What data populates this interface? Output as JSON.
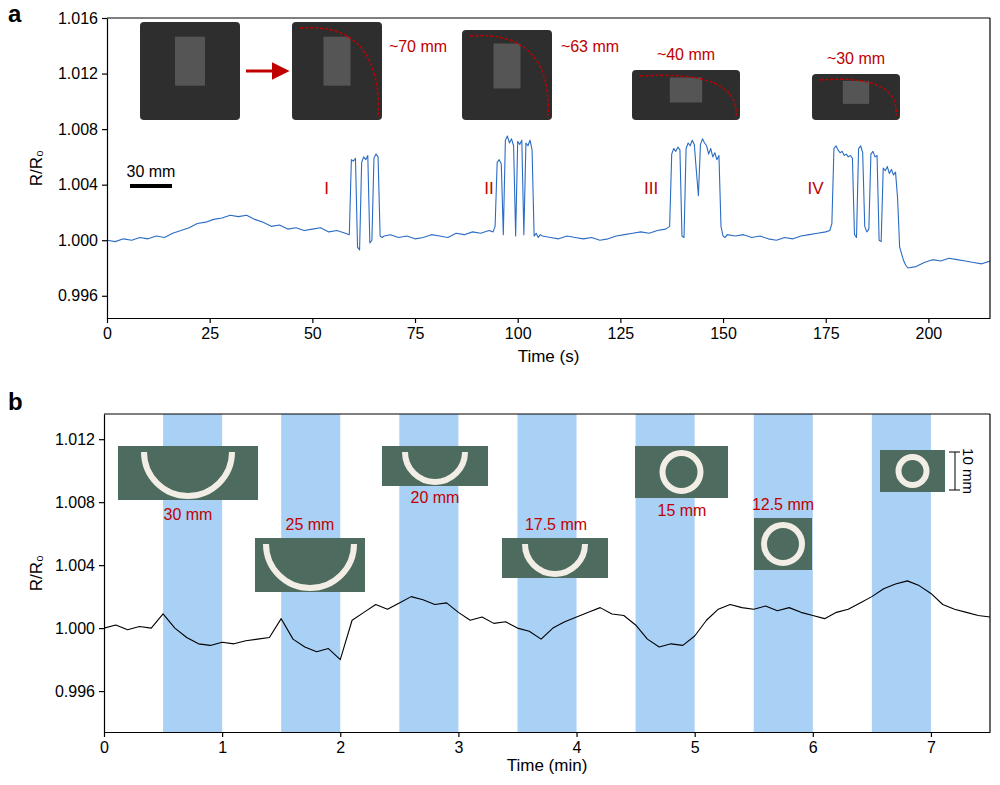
{
  "chart_data": [
    {
      "type": "line",
      "panel": "a",
      "x_label": "Time (s)",
      "y_label": "R/R₀",
      "color": "#2b6cc4",
      "grid": false,
      "xlim": [
        0,
        215
      ],
      "xticks": [
        0,
        25,
        50,
        75,
        100,
        125,
        150,
        175,
        200
      ],
      "ylim": [
        0.9944,
        1.016
      ],
      "yticks": [
        0.996,
        {
          "value": 1,
          "label": "1.000"
        },
        1.004,
        1.008,
        1.012,
        1.016
      ],
      "annotations": [
        {
          "text": "I",
          "x": 53.5,
          "y": 1.0033
        },
        {
          "text": "II",
          "x": 93,
          "y": 1.0033
        },
        {
          "text": "III",
          "x": 132.5,
          "y": 1.0033
        },
        {
          "text": "IV",
          "x": 172.5,
          "y": 1.0033
        }
      ],
      "inset_labels": [
        "~70 mm",
        "~63 mm",
        "~40 mm",
        "~30 mm"
      ],
      "scale_bar": "30 mm",
      "x": [
        0,
        2,
        4,
        6,
        8,
        10,
        12,
        14,
        16,
        18,
        20,
        22,
        24,
        26,
        28,
        30,
        32,
        34,
        36,
        38,
        40,
        42,
        44,
        46,
        48,
        50,
        52,
        54,
        56,
        58,
        59,
        59.5,
        60,
        60.5,
        61,
        61.5,
        62,
        62.5,
        63,
        63.5,
        64,
        64.5,
        65,
        65.5,
        66,
        66.5,
        67,
        67.5,
        69,
        71,
        73,
        75,
        77,
        79,
        81,
        83,
        85,
        87,
        89,
        91,
        93,
        94,
        94.5,
        95,
        95.5,
        96,
        96.5,
        97,
        97.5,
        98,
        98.5,
        99,
        99.5,
        100,
        100.5,
        101,
        101.5,
        102,
        102.5,
        103,
        103.5,
        104,
        104.5,
        105,
        105.5,
        106,
        108,
        110,
        112,
        114,
        116,
        118,
        120,
        122,
        124,
        126,
        128,
        130,
        132,
        134,
        136,
        137,
        137.5,
        138,
        138.5,
        139,
        139.5,
        140,
        140.5,
        141,
        141.5,
        142,
        142.5,
        143,
        143.5,
        144,
        144.5,
        145,
        145.5,
        146,
        146.5,
        147,
        147.5,
        148,
        148.5,
        149,
        149.5,
        150,
        150.5,
        151,
        153,
        155,
        157,
        159,
        161,
        163,
        165,
        167,
        169,
        171,
        173,
        175,
        176,
        176.5,
        177,
        177.5,
        178,
        178.5,
        179,
        179.5,
        180,
        180.5,
        181,
        181.5,
        182,
        182.5,
        183,
        183.5,
        184,
        184.5,
        185,
        185.5,
        186,
        186.5,
        187,
        187.5,
        188,
        188.5,
        189,
        189.5,
        190,
        190.5,
        191,
        191.5,
        192,
        192.5,
        193,
        193.5,
        194,
        194.5,
        195,
        197,
        199,
        201,
        203,
        205,
        207,
        209,
        211,
        213,
        215
      ],
      "values": [
        1.0,
        0.9999,
        1.0001,
        1.0,
        1.0002,
        1.0001,
        1.0003,
        1.0002,
        1.0005,
        1.0007,
        1.0009,
        1.0012,
        1.0013,
        1.0015,
        1.0016,
        1.0018,
        1.0017,
        1.0018,
        1.0015,
        1.0013,
        1.001,
        1.0011,
        1.0008,
        1.0009,
        1.0007,
        1.0008,
        1.0009,
        1.0006,
        1.0007,
        1.0005,
        1.0004,
        1.0058,
        1.0057,
        1.0059,
        0.9995,
        0.9993,
        1.0056,
        1.006,
        1.0058,
        1.0061,
        0.9998,
        1.0,
        1.0059,
        1.0062,
        1.006,
        1.0003,
        1.0002,
        1.0003,
        1.0004,
        1.0002,
        1.0003,
        1.0001,
        1.0002,
        1.0004,
        1.0003,
        1.0002,
        1.0005,
        1.0004,
        1.0006,
        1.0005,
        1.0007,
        1.0006,
        1.001,
        1.0056,
        1.0058,
        1.0055,
        1.0004,
        1.0072,
        1.0075,
        1.007,
        1.0073,
        1.0068,
        1.0003,
        1.0071,
        1.0069,
        1.0072,
        1.0004,
        1.007,
        1.0068,
        1.0072,
        1.0065,
        1.0003,
        1.0005,
        1.0002,
        1.0004,
        1.0003,
        1.0002,
        1.0001,
        1.0003,
        1.0002,
        1.0001,
        1.0002,
        1.0,
        1.0001,
        1.0003,
        1.0004,
        1.0005,
        1.0006,
        1.0005,
        1.0007,
        1.0008,
        1.001,
        1.0062,
        1.0066,
        1.0064,
        1.0067,
        1.0065,
        1.0003,
        1.0002,
        1.0066,
        1.007,
        1.0068,
        1.0072,
        1.0069,
        1.005,
        1.0032,
        1.0069,
        1.0073,
        1.007,
        1.0068,
        1.0062,
        1.0066,
        1.006,
        1.0063,
        1.0058,
        1.0061,
        1.001,
        1.0003,
        1.0002,
        1.0004,
        1.0003,
        1.0004,
        1.0002,
        1.0003,
        1.0001,
        1.0,
        1.0002,
        1.0001,
        1.0003,
        1.0004,
        1.0005,
        1.0006,
        1.0007,
        1.0012,
        1.0066,
        1.0068,
        1.0065,
        1.0063,
        1.0064,
        1.0061,
        1.0062,
        1.006,
        1.0061,
        1.0059,
        1.0004,
        1.0002,
        1.0066,
        1.0068,
        1.0063,
        1.001,
        1.0006,
        1.0008,
        1.0062,
        1.0064,
        1.006,
        1.0061,
        1.0,
        0.9999,
        1.0052,
        1.005,
        1.0053,
        1.0048,
        1.0051,
        1.0047,
        1.0049,
        1.003,
        0.9995,
        0.999,
        0.9985,
        0.9982,
        0.998,
        0.9981,
        0.9984,
        0.9986,
        0.9985,
        0.9987,
        0.9986,
        0.9985,
        0.9984,
        0.9983,
        0.9985
      ]
    },
    {
      "type": "line",
      "panel": "b",
      "x_label": "Time (min)",
      "y_label": "R/R₀",
      "color": "#000000",
      "grid": false,
      "xlim": [
        0,
        7.5
      ],
      "xticks": [
        0,
        1,
        2,
        3,
        4,
        5,
        6,
        7
      ],
      "ylim": [
        0.9934,
        1.0136
      ],
      "yticks": [
        0.996,
        {
          "value": 1,
          "label": "1.000"
        },
        1.004,
        1.008,
        1.012
      ],
      "shaded_intervals": [
        [
          0.5,
          1
        ],
        [
          1.5,
          2
        ],
        [
          2.5,
          3
        ],
        [
          3.5,
          4
        ],
        [
          4.5,
          5
        ],
        [
          5.5,
          6
        ],
        [
          6.5,
          7
        ]
      ],
      "inset_labels": [
        "30 mm",
        "25 mm",
        "20 mm",
        "17.5 mm",
        "15 mm",
        "12.5 mm"
      ],
      "scale_bar": "10 mm",
      "x": [
        0,
        0.1,
        0.2,
        0.3,
        0.4,
        0.5,
        0.6,
        0.7,
        0.8,
        0.9,
        1,
        1.1,
        1.2,
        1.3,
        1.4,
        1.5,
        1.6,
        1.7,
        1.8,
        1.9,
        2,
        2.1,
        2.2,
        2.3,
        2.4,
        2.5,
        2.6,
        2.7,
        2.8,
        2.9,
        3,
        3.1,
        3.2,
        3.3,
        3.4,
        3.5,
        3.6,
        3.7,
        3.8,
        3.9,
        4,
        4.1,
        4.2,
        4.3,
        4.4,
        4.5,
        4.6,
        4.7,
        4.8,
        4.9,
        5,
        5.1,
        5.2,
        5.3,
        5.4,
        5.5,
        5.6,
        5.7,
        5.8,
        5.9,
        6,
        6.1,
        6.2,
        6.3,
        6.4,
        6.5,
        6.6,
        6.7,
        6.8,
        6.9,
        7,
        7.1,
        7.2,
        7.3,
        7.4,
        7.5
      ],
      "values": [
        1.0,
        1.0002,
        0.9999,
        1.0001,
        1.0,
        1.0009,
        1.0,
        0.9994,
        0.999,
        0.9989,
        0.9991,
        0.999,
        0.9992,
        0.9993,
        0.9994,
        1.0006,
        0.9993,
        0.9988,
        0.9985,
        0.9987,
        0.998,
        1.0005,
        1.001,
        1.0015,
        1.0012,
        1.0016,
        1.002,
        1.0018,
        1.0015,
        1.0016,
        1.001,
        1.0005,
        1.0007,
        1.0003,
        1.0004,
        1.0,
        0.9998,
        0.9993,
        1.0,
        1.0004,
        1.0007,
        1.001,
        1.0013,
        1.0009,
        1.0008,
        1.0002,
        0.9993,
        0.9988,
        0.999,
        0.9989,
        0.9995,
        1.0005,
        1.0012,
        1.0015,
        1.0013,
        1.0012,
        1.0014,
        1.0011,
        1.0013,
        1.001,
        1.0008,
        1.0006,
        1.001,
        1.0012,
        1.0016,
        1.002,
        1.0025,
        1.0028,
        1.003,
        1.0027,
        1.0022,
        1.0015,
        1.0012,
        1.001,
        1.0008,
        1.0007
      ]
    }
  ]
}
